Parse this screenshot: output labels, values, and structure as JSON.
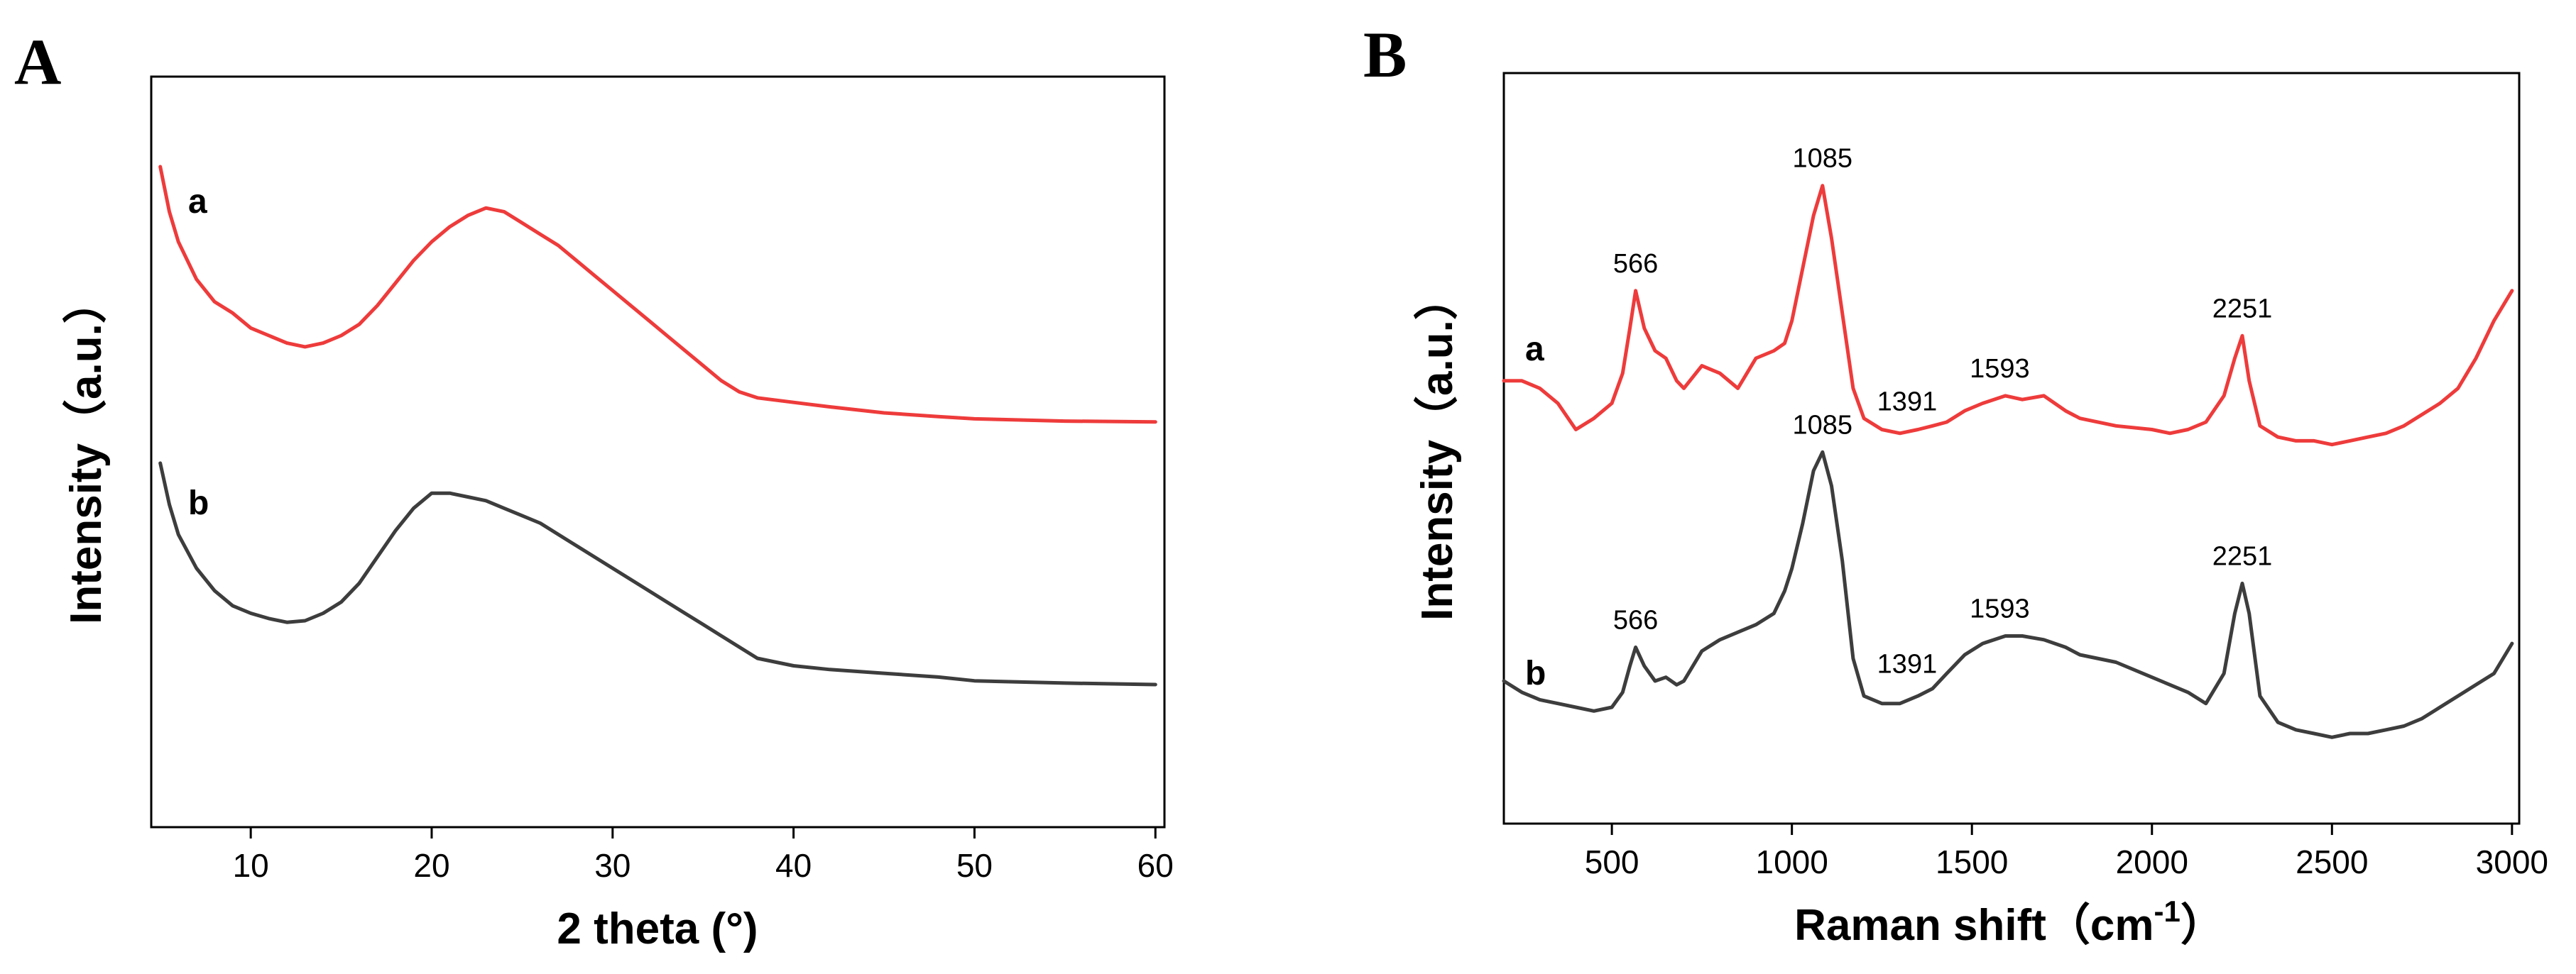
{
  "chart_data": [
    {
      "panel": "A",
      "type": "line",
      "xlabel": "2 theta (°)",
      "ylabel": "Intensity（a.u.）",
      "xlim": [
        4.5,
        60.5
      ],
      "ylim": [
        0,
        100
      ],
      "xticks": [
        10,
        20,
        30,
        40,
        50,
        60
      ],
      "xtick_labels": [
        "10",
        "20",
        "30",
        "40",
        "50",
        "60"
      ],
      "yticks_shown": false,
      "series": [
        {
          "name": "a",
          "color": "#ee3b3b",
          "x": [
            5,
            5.5,
            6,
            7,
            8,
            9,
            10,
            11,
            12,
            13,
            14,
            15,
            16,
            17,
            18,
            19,
            20,
            21,
            22,
            23,
            24,
            25,
            26,
            27,
            28,
            29,
            30,
            31,
            32,
            33,
            34,
            35,
            36,
            37,
            38,
            40,
            42,
            45,
            48,
            50,
            55,
            60
          ],
          "y": [
            88,
            82,
            78,
            73,
            70,
            68.5,
            66.5,
            65.5,
            64.5,
            64,
            64.5,
            65.5,
            67,
            69.5,
            72.5,
            75.5,
            78,
            80,
            81.5,
            82.5,
            82,
            80.5,
            79,
            77.5,
            75.5,
            73.5,
            71.5,
            69.5,
            67.5,
            65.5,
            63.5,
            61.5,
            59.5,
            58,
            57.2,
            56.6,
            56,
            55.2,
            54.7,
            54.4,
            54.1,
            54
          ]
        },
        {
          "name": "b",
          "color": "#3d3d3d",
          "x": [
            5,
            5.5,
            6,
            7,
            8,
            9,
            10,
            11,
            12,
            13,
            14,
            15,
            16,
            17,
            18,
            19,
            20,
            21,
            22,
            23,
            24,
            25,
            26,
            27,
            28,
            29,
            30,
            31,
            32,
            33,
            34,
            35,
            36,
            37,
            38,
            40,
            42,
            45,
            48,
            50,
            55,
            60
          ],
          "y": [
            48.5,
            43,
            39,
            34.5,
            31.5,
            29.5,
            28.5,
            27.8,
            27.3,
            27.5,
            28.5,
            30,
            32.5,
            36,
            39.5,
            42.5,
            44.5,
            44.5,
            44,
            43.5,
            42.5,
            41.5,
            40.5,
            39,
            37.5,
            36,
            34.5,
            33,
            31.5,
            30,
            28.5,
            27,
            25.5,
            24,
            22.5,
            21.5,
            21,
            20.5,
            20,
            19.5,
            19.2,
            19
          ]
        }
      ]
    },
    {
      "panel": "B",
      "type": "line",
      "xlabel": "Raman shift（cm",
      "xlabel_sup": "-1",
      "xlabel_suffix": "）",
      "ylabel": "Intensity（a.u.）",
      "xlim": [
        200,
        3020
      ],
      "ylim": [
        0,
        100
      ],
      "xticks": [
        500,
        1000,
        1500,
        2000,
        2500,
        3000
      ],
      "xtick_labels": [
        "500",
        "1000",
        "1500",
        "2000",
        "2500",
        "3000"
      ],
      "yticks_shown": false,
      "series": [
        {
          "name": "a",
          "color": "#ee3b3b",
          "x": [
            200,
            250,
            300,
            350,
            400,
            450,
            500,
            530,
            550,
            566,
            590,
            620,
            650,
            680,
            700,
            750,
            800,
            850,
            900,
            950,
            980,
            1000,
            1030,
            1060,
            1085,
            1110,
            1140,
            1170,
            1200,
            1250,
            1300,
            1350,
            1391,
            1430,
            1480,
            1530,
            1593,
            1640,
            1700,
            1760,
            1800,
            1900,
            2000,
            2050,
            2100,
            2150,
            2200,
            2230,
            2251,
            2270,
            2300,
            2350,
            2400,
            2450,
            2500,
            2550,
            2600,
            2650,
            2700,
            2750,
            2800,
            2850,
            2900,
            2950,
            3000
          ],
          "y": [
            59,
            59,
            58,
            56,
            52.5,
            54,
            56,
            60,
            66,
            71,
            66,
            63,
            62,
            59,
            58,
            61,
            60,
            58,
            62,
            63,
            64,
            67,
            74,
            81,
            85,
            78,
            68,
            58,
            54,
            52.5,
            52,
            52.5,
            53,
            53.5,
            55,
            56,
            57,
            56.5,
            57,
            55,
            54,
            53,
            52.5,
            52,
            52.5,
            53.5,
            57,
            62,
            65,
            59,
            53,
            51.5,
            51,
            51,
            50.5,
            51,
            51.5,
            52,
            53,
            54.5,
            56,
            58,
            62,
            67,
            71
          ]
        },
        {
          "name": "b",
          "color": "#3d3d3d",
          "x": [
            200,
            250,
            300,
            350,
            400,
            450,
            500,
            530,
            550,
            566,
            590,
            620,
            650,
            680,
            700,
            750,
            800,
            850,
            900,
            950,
            980,
            1000,
            1030,
            1060,
            1085,
            1110,
            1140,
            1170,
            1200,
            1250,
            1300,
            1350,
            1391,
            1430,
            1480,
            1530,
            1593,
            1640,
            1700,
            1760,
            1800,
            1900,
            2000,
            2050,
            2100,
            2150,
            2200,
            2230,
            2251,
            2270,
            2300,
            2350,
            2400,
            2450,
            2500,
            2550,
            2600,
            2650,
            2700,
            2750,
            2800,
            2850,
            2900,
            2950,
            3000
          ],
          "y": [
            19,
            17.5,
            16.5,
            16,
            15.5,
            15,
            15.5,
            17.5,
            21,
            23.5,
            21,
            19,
            19.5,
            18.5,
            19,
            23,
            24.5,
            25.5,
            26.5,
            28,
            31,
            34,
            40,
            47,
            49.5,
            45,
            35,
            22,
            17,
            16,
            16,
            17,
            18,
            20,
            22.5,
            24,
            25,
            25,
            24.5,
            23.5,
            22.5,
            21.5,
            19.5,
            18.5,
            17.5,
            16,
            20,
            28,
            32,
            28,
            17,
            13.5,
            12.5,
            12,
            11.5,
            12,
            12,
            12.5,
            13,
            14,
            15.5,
            17,
            18.5,
            20,
            24
          ]
        }
      ],
      "annotations": [
        {
          "series": "a",
          "x": 566,
          "text": "566"
        },
        {
          "series": "a",
          "x": 1085,
          "text": "1085"
        },
        {
          "series": "a",
          "x": 1391,
          "text": "1391"
        },
        {
          "series": "a",
          "x": 1593,
          "text": "1593"
        },
        {
          "series": "a",
          "x": 2251,
          "text": "2251"
        },
        {
          "series": "b",
          "x": 566,
          "text": "566"
        },
        {
          "series": "b",
          "x": 1085,
          "text": "1085"
        },
        {
          "series": "b",
          "x": 1391,
          "text": "1391"
        },
        {
          "series": "b",
          "x": 1593,
          "text": "1593"
        },
        {
          "series": "b",
          "x": 2251,
          "text": "2251"
        }
      ]
    }
  ]
}
